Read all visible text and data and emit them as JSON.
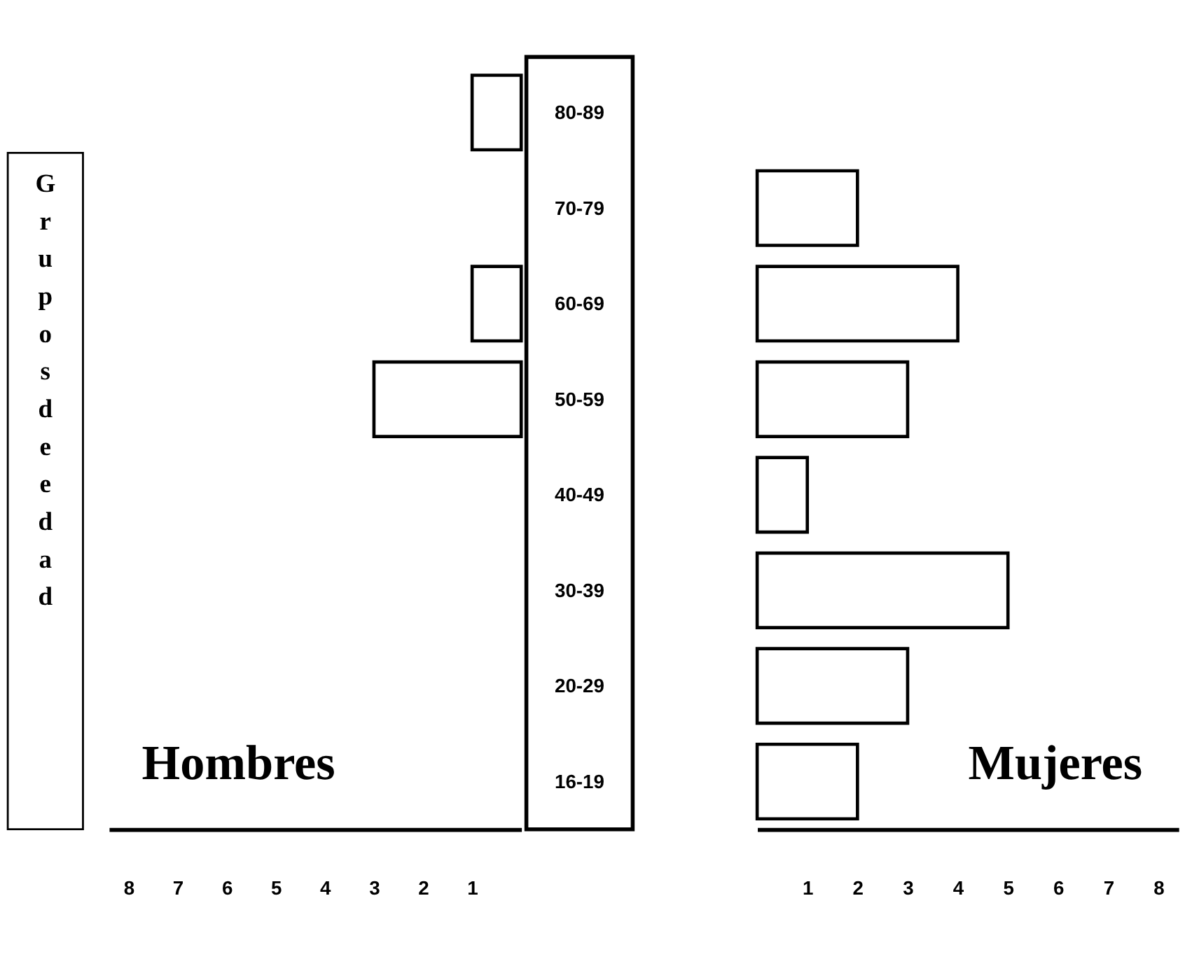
{
  "chart_data": [
    {
      "type": "bar",
      "orientation": "horizontal",
      "ylabel": "Grupos de edad",
      "categories": [
        "80-89",
        "70-79",
        "60-69",
        "50-59",
        "40-49",
        "30-39",
        "20-29",
        "16-19"
      ],
      "series": [
        {
          "name": "Hombres",
          "color": "#ffffff",
          "values": [
            -1,
            0,
            -1,
            -3,
            0,
            0,
            0,
            0
          ]
        }
      ],
      "xlim": [
        -8.4,
        0
      ],
      "xticks": [
        {
          "value": -8,
          "label": "8"
        },
        {
          "value": -7,
          "label": "7"
        },
        {
          "value": -6,
          "label": "6"
        },
        {
          "value": -5,
          "label": "5"
        },
        {
          "value": -4,
          "label": "4"
        },
        {
          "value": -3,
          "label": "3"
        },
        {
          "value": -2,
          "label": "2"
        },
        {
          "value": -1,
          "label": "1"
        }
      ]
    },
    {
      "type": "bar",
      "orientation": "horizontal",
      "tick_labels": "x",
      "categories": [
        null,
        null,
        null,
        null,
        null,
        null,
        null,
        null
      ],
      "series": [
        {
          "name": "Mujeres",
          "color": "#ffffff",
          "values": [
            0,
            2,
            4,
            3,
            1,
            5,
            3,
            2
          ]
        }
      ],
      "xlim": [
        0,
        8.4
      ],
      "xticks": [
        1,
        2,
        3,
        4,
        5,
        6,
        7,
        8
      ]
    }
  ]
}
